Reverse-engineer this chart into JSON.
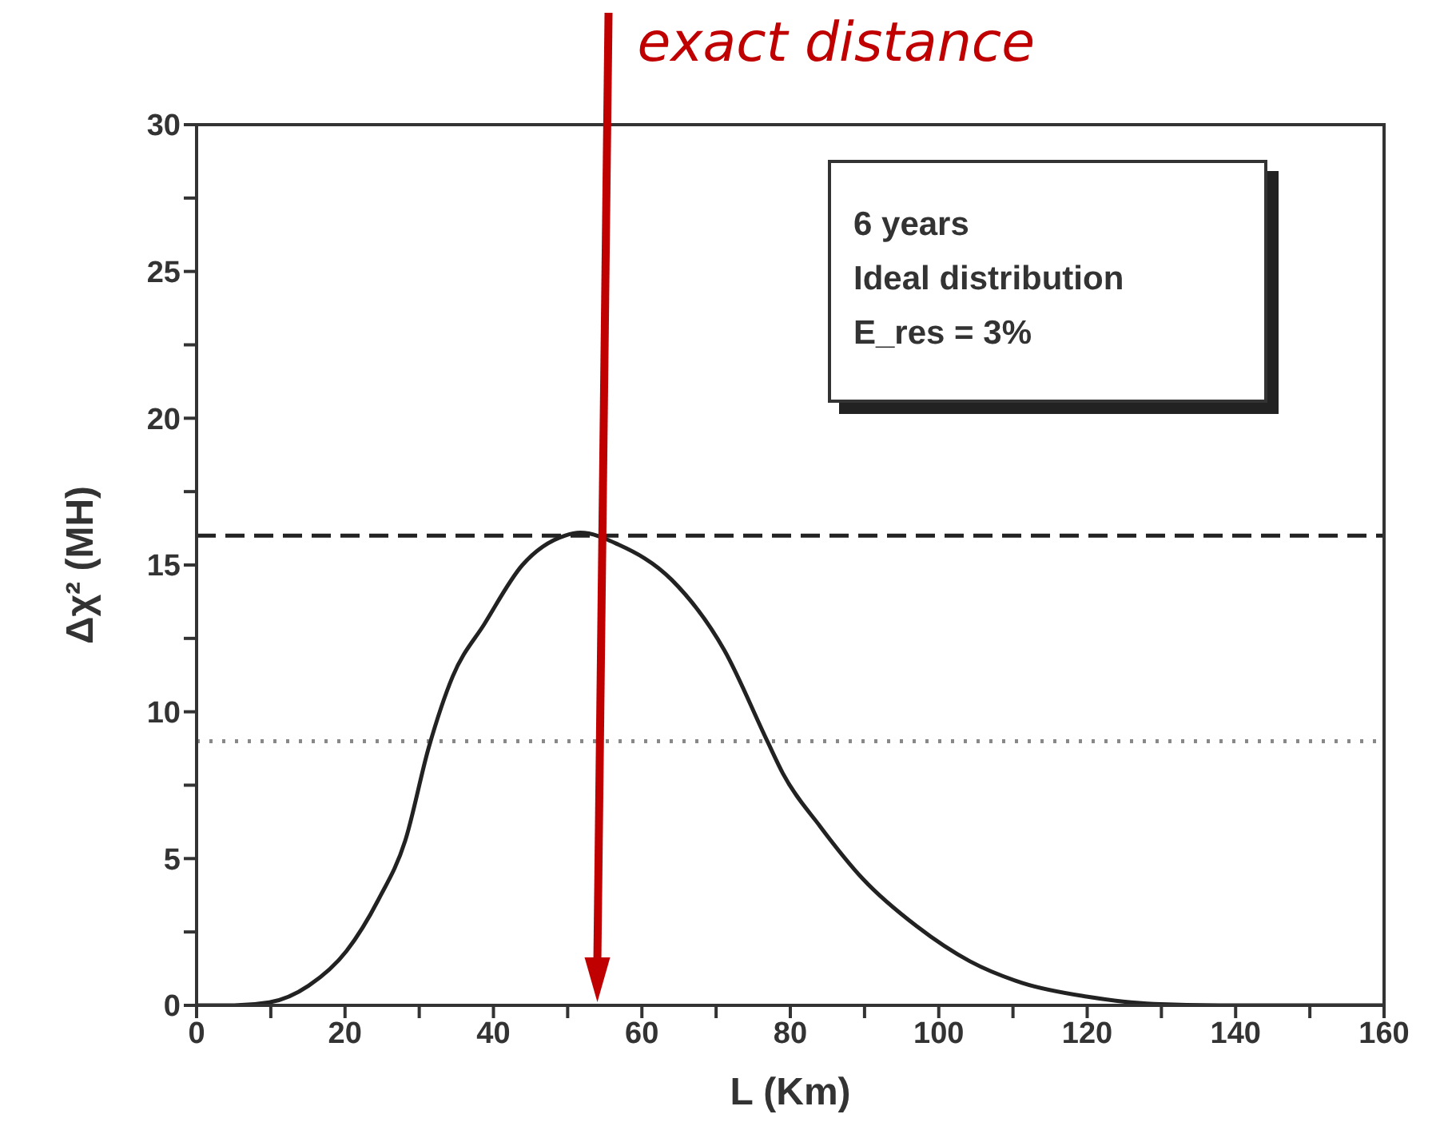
{
  "chart_data": {
    "type": "line",
    "xlabel": "L (Km)",
    "ylabel": "Δχ² (MH)",
    "x": [
      0,
      5.1,
      9.8,
      15.1,
      20.2,
      24.5,
      28.1,
      31.3,
      34.5,
      38.8,
      43.9,
      49.6,
      51.7,
      56.8,
      64.0,
      71.1,
      76.9,
      79.0,
      84.0,
      89.8,
      97.0,
      104.2,
      111.3,
      119.9,
      129,
      140,
      160
    ],
    "series": [
      {
        "color": "#222222",
        "values": [
          0,
          0,
          0.1,
          0.67,
          1.85,
          3.6,
          5.6,
          8.8,
          11.2,
          13.0,
          15.0,
          16.0,
          16.1,
          15.7,
          14.5,
          12.1,
          9.0,
          7.9,
          6.1,
          4.3,
          2.7,
          1.5,
          0.76,
          0.3,
          0.05,
          0,
          0
        ]
      }
    ],
    "xlim": [
      0,
      160
    ],
    "ylim": [
      0,
      30
    ],
    "xticks": [
      0,
      {
        "value": 10,
        "label": null
      },
      20,
      {
        "value": 30,
        "label": null
      },
      40,
      {
        "value": 50,
        "label": null
      },
      60,
      {
        "value": 70,
        "label": null
      },
      80,
      {
        "value": 90,
        "label": null
      },
      100,
      {
        "value": 110,
        "label": null
      },
      120,
      {
        "value": 130,
        "label": null
      },
      140,
      {
        "value": 150,
        "label": null
      },
      160
    ],
    "yticks": [
      0,
      {
        "value": 2.5,
        "label": null
      },
      5,
      {
        "value": 7.5,
        "label": null
      },
      10,
      {
        "value": 12.5,
        "label": null
      },
      15,
      {
        "value": 17.5,
        "label": null
      },
      20,
      {
        "value": 22.5,
        "label": null
      },
      25,
      {
        "value": 27.5,
        "label": null
      },
      30
    ],
    "ref_lines": [
      {
        "axis": "y",
        "value": 16,
        "color": "#222222",
        "line_style": "dashed"
      },
      {
        "axis": "y",
        "value": 9,
        "color": "#888888",
        "line_style": "dotted"
      }
    ],
    "annotations": [
      "exact distance",
      "6 years",
      "Ideal distribution",
      "E_res = 3%"
    ],
    "marker": "none",
    "line_style": "solid"
  }
}
